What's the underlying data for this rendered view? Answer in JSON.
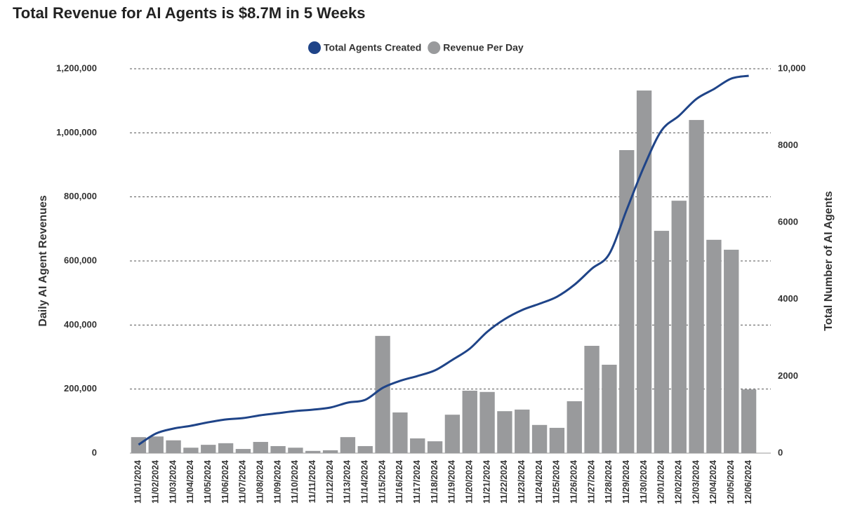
{
  "chart_data": {
    "type": "bar_line",
    "title": "Total Revenue for AI Agents is $8.7M in 5 Weeks",
    "y_label": "Daily AI Agent Revenues",
    "y2_label": "Total Number of AI Agents",
    "categories": [
      "11/01/2024",
      "11/02/2024",
      "11/03/2024",
      "11/04/2024",
      "11/05/2024",
      "11/06/2024",
      "11/07/2024",
      "11/08/2024",
      "11/09/2024",
      "11/10/2024",
      "11/11/2024",
      "11/12/2024",
      "11/13/2024",
      "11/14/2024",
      "11/15/2024",
      "11/16/2024",
      "11/17/2024",
      "11/18/2024",
      "11/19/2024",
      "11/20/2024",
      "11/21/2024",
      "11/22/2024",
      "11/23/2024",
      "11/24/2024",
      "11/25/2024",
      "11/26/2024",
      "11/27/2024",
      "11/28/2024",
      "11/29/2024",
      "11/30/2024",
      "12/01/2024",
      "12/02/2024",
      "12/03/2024",
      "12/04/2024",
      "12/05/2024",
      "12/06/2024"
    ],
    "series": [
      {
        "name": "Total Agents Created",
        "type": "line",
        "axis": "y2",
        "color": "#1f4488",
        "values": [
          220,
          511,
          639,
          712,
          803,
          876,
          912,
          985,
          1040,
          1095,
          1131,
          1186,
          1314,
          1387,
          1697,
          1880,
          2007,
          2153,
          2427,
          2719,
          3157,
          3485,
          3723,
          3887,
          4069,
          4380,
          4799,
          5182,
          6332,
          7464,
          8394,
          8777,
          9215,
          9471,
          9745,
          9818
        ]
      },
      {
        "name": "Revenue Per Day",
        "type": "bar",
        "color": "#999a9c",
        "values": [
          50000,
          52000,
          40000,
          17000,
          26000,
          31000,
          13000,
          35000,
          22000,
          17000,
          7000,
          9000,
          50000,
          22000,
          366000,
          127000,
          46000,
          37000,
          120000,
          195000,
          191000,
          131000,
          136000,
          88000,
          79000,
          162000,
          335000,
          276000,
          946000,
          1132000,
          694000,
          788000,
          1040000,
          666000,
          635000,
          199000
        ]
      }
    ],
    "ylim": [
      0,
      1200000
    ],
    "yticks": [
      0,
      {
        "value": 200000,
        "label": "200,000"
      },
      {
        "value": 400000,
        "label": "400,000"
      },
      {
        "value": 600000,
        "label": "600,000"
      },
      {
        "value": 800000,
        "label": "800,000"
      },
      {
        "value": 1000000,
        "label": "1,000,000"
      },
      {
        "value": 1200000,
        "label": "1,200,000"
      }
    ],
    "y2lim": [
      0,
      10000
    ],
    "y2ticks": [
      0,
      2000,
      4000,
      6000,
      8000,
      {
        "value": 10000,
        "label": "10,000"
      }
    ],
    "grid": true
  }
}
